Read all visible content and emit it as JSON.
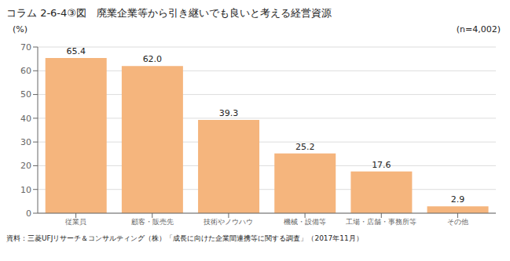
{
  "chart_data": {
    "type": "bar",
    "title": "コラム 2-6-4③図　廃業企業等から引き継いでも良いと考える経営資源",
    "categories": [
      "従業員",
      "顧客・販売先",
      "技術やノウハウ",
      "機械・設備等",
      "工場・店舗・事務所等",
      "その他"
    ],
    "values": [
      65.4,
      62.0,
      39.3,
      25.2,
      17.6,
      2.9
    ],
    "value_labels": [
      "65.4",
      "62.0",
      "39.3",
      "25.2",
      "17.6",
      "2.9"
    ],
    "data_labels": true,
    "color": "#F5B57D",
    "ylabel": "(%)",
    "ylim": [
      0,
      70
    ],
    "yticks": [
      0,
      10,
      20,
      30,
      40,
      50,
      60,
      70
    ],
    "grid": true,
    "note": "(n=4,002)",
    "source": "資料：三菱UFJリサーチ＆コンサルティング（株）「成長に向けた企業間連携等に関する調査」（2017年11月）"
  }
}
